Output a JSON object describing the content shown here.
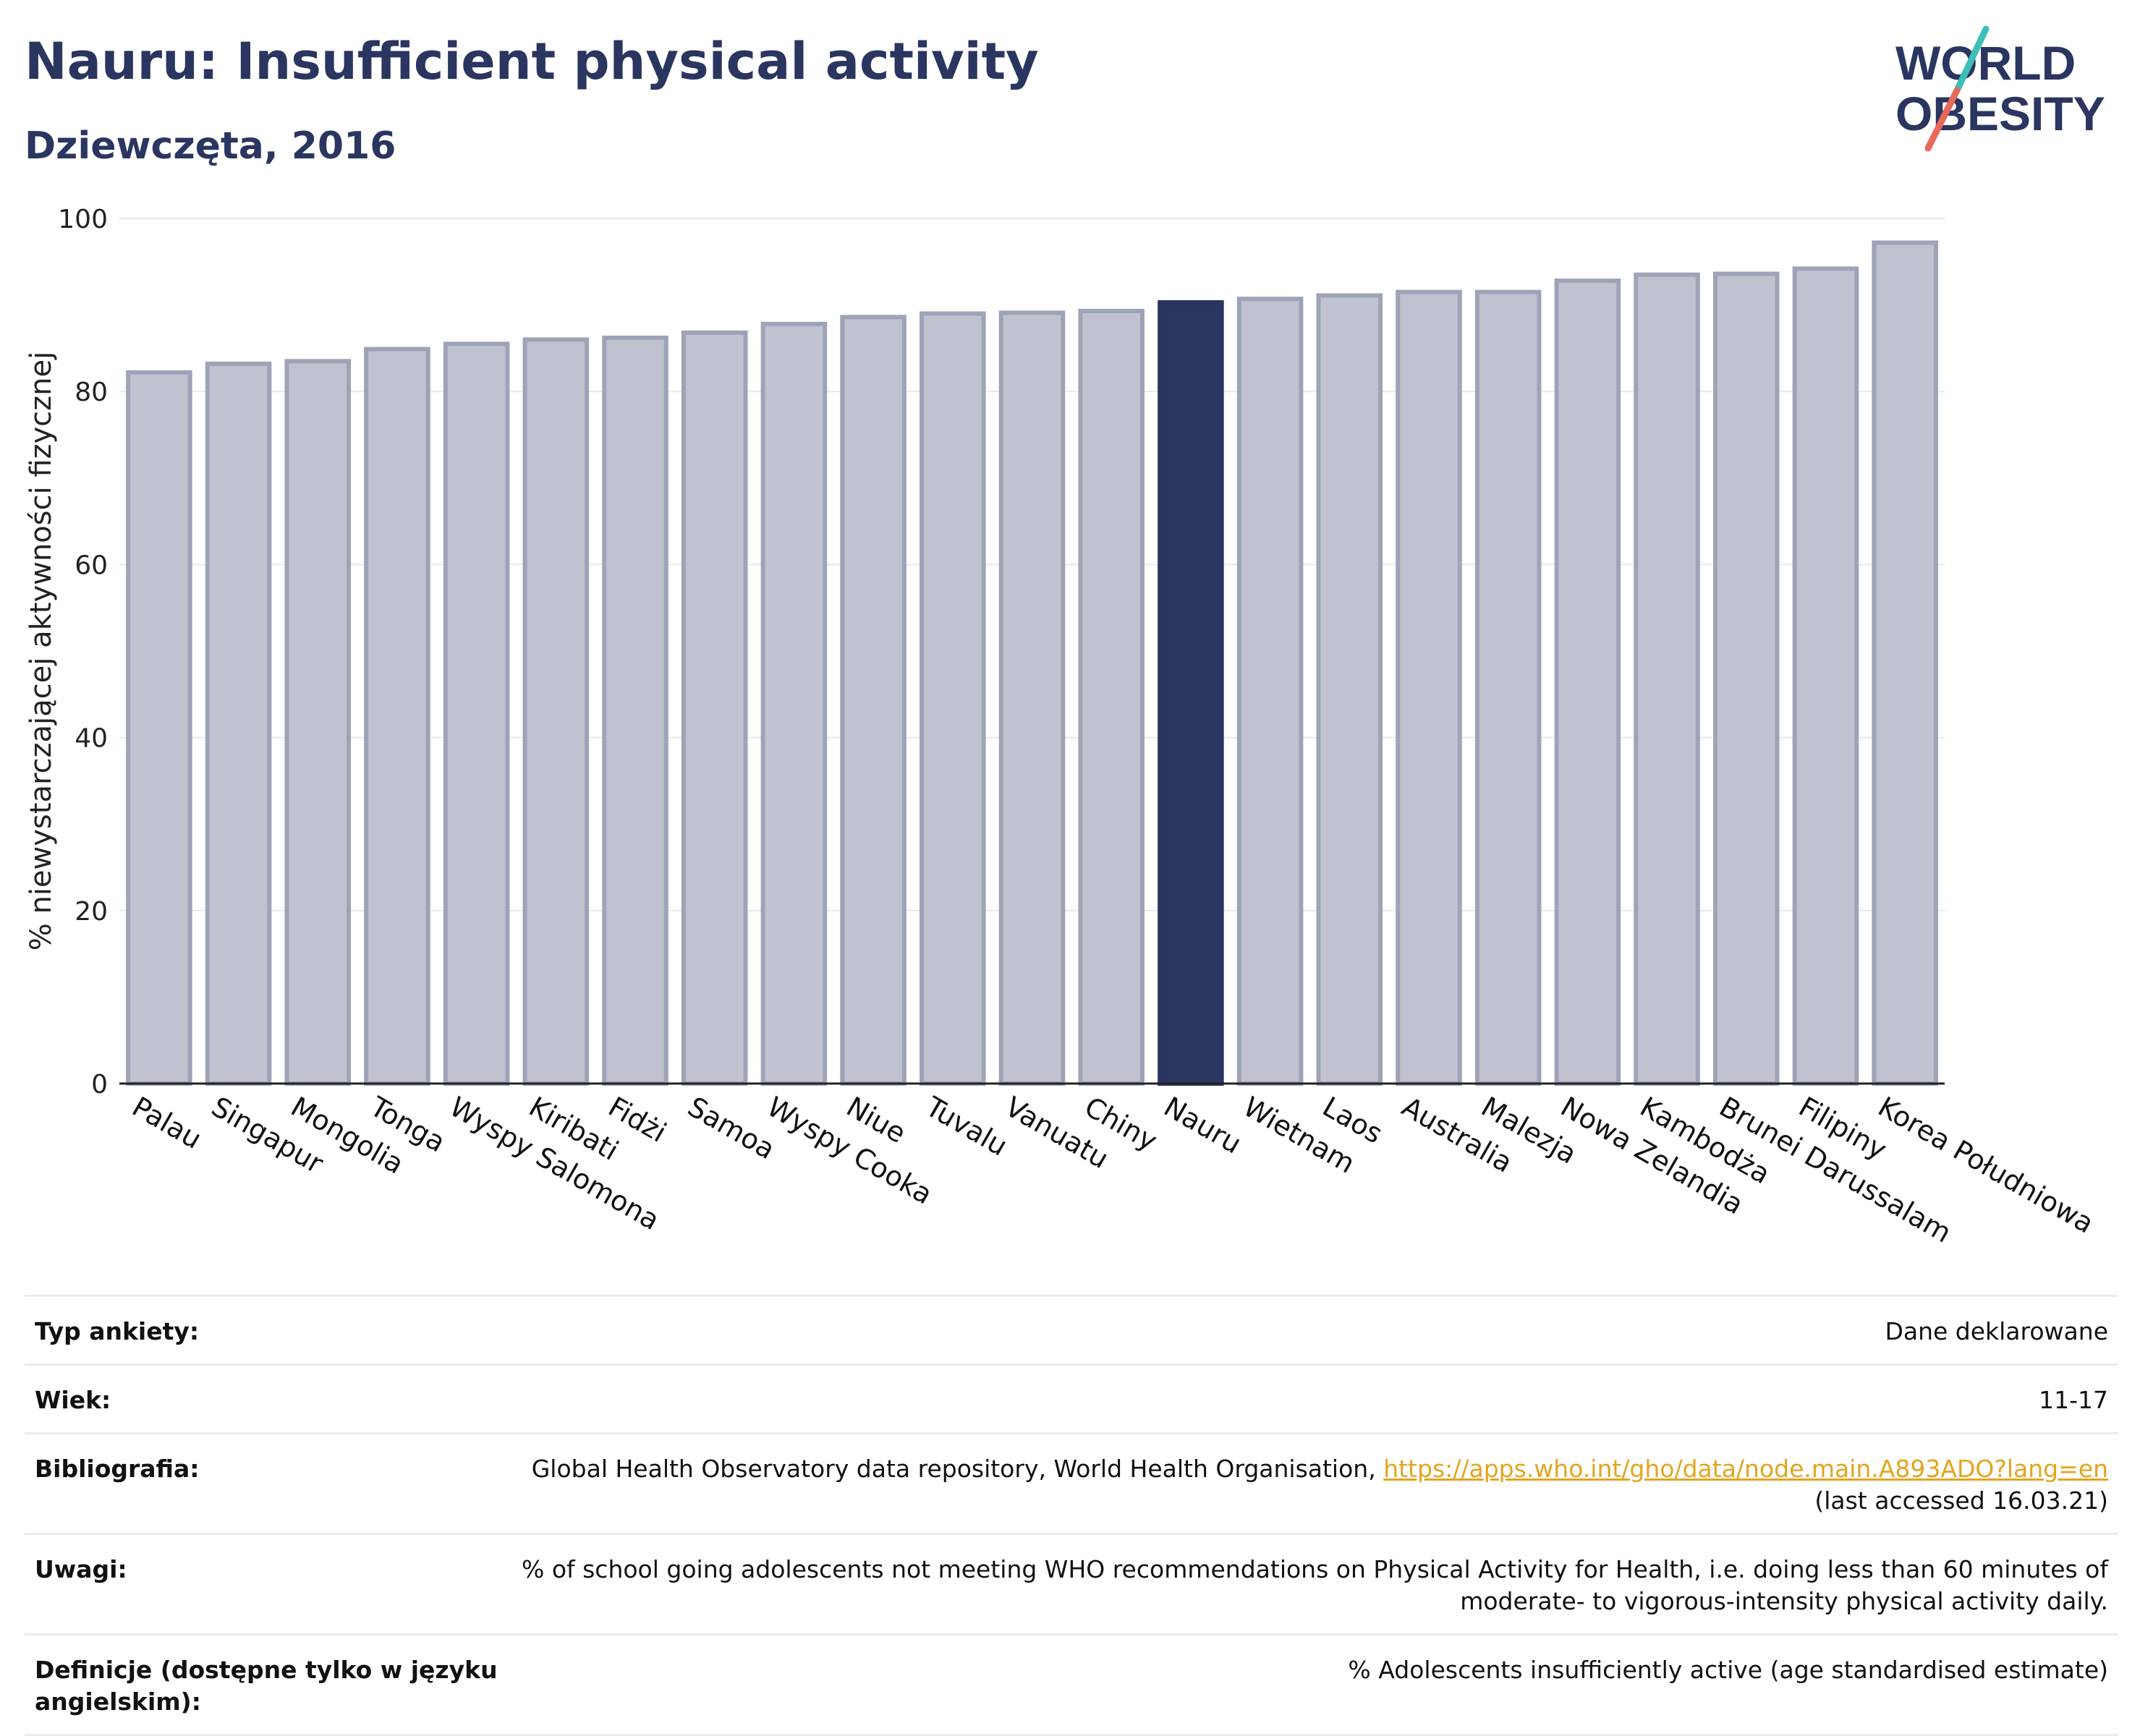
{
  "header": {
    "title": "Nauru: Insufficient physical activity",
    "subtitle": "Dziewczęta, 2016"
  },
  "logo": {
    "line1": "WORLD",
    "line2": "OBESITY",
    "colors": {
      "text": "#2a3560",
      "slash_top": "#3dbfb8",
      "slash_bottom": "#e8685a"
    }
  },
  "chart_data": {
    "type": "bar",
    "title": "",
    "xlabel": "",
    "ylabel": "% niewystarczającej aktywności fizycznej",
    "ylim": [
      0,
      100
    ],
    "yticks": [
      0,
      20,
      40,
      60,
      80,
      100
    ],
    "grid": true,
    "legend": "none",
    "highlight": "Nauru",
    "colors": {
      "bar": "#c0c3cf",
      "bar_edge": "#9ea3b8",
      "highlight": "#2a3560",
      "grid": "#e8e8e8",
      "axis": "#222222"
    },
    "categories": [
      "Palau",
      "Singapur",
      "Mongolia",
      "Tonga",
      "Wyspy Salomona",
      "Kiribati",
      "Fidżi",
      "Samoa",
      "Wyspy Cooka",
      "Niue",
      "Tuvalu",
      "Vanuatu",
      "Chiny",
      "Nauru",
      "Wietnam",
      "Laos",
      "Australia",
      "Malezja",
      "Nowa Zelandia",
      "Kambodża",
      "Brunei Darussalam",
      "Filipiny",
      "Korea Południowa"
    ],
    "values": [
      82.2,
      83.2,
      83.5,
      84.9,
      85.5,
      86.0,
      86.2,
      86.8,
      87.8,
      88.6,
      89.0,
      89.1,
      89.3,
      90.3,
      90.7,
      91.1,
      91.5,
      91.5,
      92.8,
      93.5,
      93.6,
      94.2,
      97.2
    ]
  },
  "info": {
    "rows": [
      {
        "label": "Typ ankiety:",
        "value": "Dane deklarowane"
      },
      {
        "label": "Wiek:",
        "value": "11-17"
      },
      {
        "label": "Bibliografia:",
        "value": "Global Health Observatory data repository, World Health Organisation,",
        "link": "https://apps.who.int/gho/data/node.main.A893ADO?lang=en",
        "value2": "(last accessed 16.03.21)"
      },
      {
        "label": "Uwagi:",
        "value": "% of school going adolescents not meeting WHO recommendations on Physical Activity for Health, i.e. doing less than 60 minutes of",
        "value2": "moderate- to vigorous-intensity physical activity daily."
      },
      {
        "label": "Definicje (dostępne tylko w języku angielskim):",
        "value": "% Adolescents insufficiently active (age standardised estimate)"
      }
    ]
  }
}
